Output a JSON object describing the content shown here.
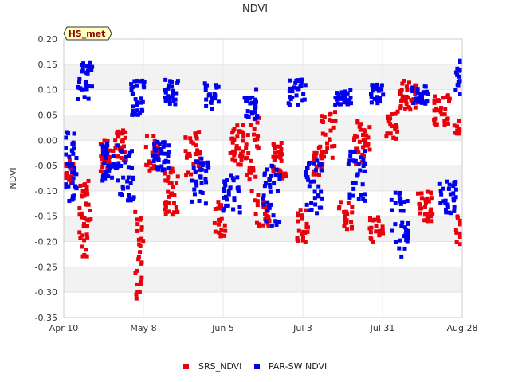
{
  "chart_data": {
    "type": "scatter",
    "title": "NDVI",
    "xlabel": "",
    "ylabel": "NDVI",
    "badge": "HS_met",
    "xlim_days": [
      0,
      140
    ],
    "ylim": [
      -0.35,
      0.2
    ],
    "yticks": [
      {
        "v": 0.2,
        "label": "0.20"
      },
      {
        "v": 0.15,
        "label": "0.15"
      },
      {
        "v": 0.1,
        "label": "0.10"
      },
      {
        "v": 0.05,
        "label": "0.05"
      },
      {
        "v": 0.0,
        "label": "0.00"
      },
      {
        "v": -0.05,
        "label": "-0.05"
      },
      {
        "v": -0.1,
        "label": "-0.10"
      },
      {
        "v": -0.15,
        "label": "-0.15"
      },
      {
        "v": -0.2,
        "label": "-0.20"
      },
      {
        "v": -0.25,
        "label": "-0.25"
      },
      {
        "v": -0.3,
        "label": "-0.30"
      },
      {
        "v": -0.35,
        "label": "-0.35"
      }
    ],
    "xticks": [
      {
        "day": 0,
        "label": "Apr 10"
      },
      {
        "day": 28,
        "label": "May 8"
      },
      {
        "day": 56,
        "label": "Jun 5"
      },
      {
        "day": 84,
        "label": "Jul 3"
      },
      {
        "day": 112,
        "label": "Jul 31"
      },
      {
        "day": 140,
        "label": "Aug 28"
      }
    ],
    "series": [
      {
        "name": "SRS_NDVI",
        "color": "#e8000b",
        "clusters": [
          {
            "day": 1.5,
            "spread": 2.2,
            "min": -0.09,
            "max": -0.04,
            "n": 24
          },
          {
            "day": 7.5,
            "spread": 2.0,
            "min": -0.23,
            "max": -0.08,
            "n": 42
          },
          {
            "day": 15,
            "spread": 2.5,
            "min": -0.07,
            "max": 0.0,
            "n": 28
          },
          {
            "day": 20,
            "spread": 2.0,
            "min": -0.04,
            "max": 0.02,
            "n": 30
          },
          {
            "day": 26.5,
            "spread": 1.5,
            "min": -0.32,
            "max": -0.14,
            "n": 28
          },
          {
            "day": 31,
            "spread": 2.2,
            "min": -0.06,
            "max": 0.01,
            "n": 24
          },
          {
            "day": 38,
            "spread": 2.5,
            "min": -0.15,
            "max": -0.05,
            "n": 34
          },
          {
            "day": 45,
            "spread": 3.0,
            "min": -0.07,
            "max": 0.02,
            "n": 32
          },
          {
            "day": 55,
            "spread": 2.0,
            "min": -0.19,
            "max": -0.12,
            "n": 20
          },
          {
            "day": 61,
            "spread": 2.5,
            "min": -0.05,
            "max": 0.03,
            "n": 34
          },
          {
            "day": 66,
            "spread": 2.5,
            "min": -0.13,
            "max": 0.05,
            "n": 32
          },
          {
            "day": 70,
            "spread": 2.5,
            "min": -0.17,
            "max": -0.12,
            "n": 24
          },
          {
            "day": 76,
            "spread": 2.5,
            "min": -0.08,
            "max": 0.0,
            "n": 34
          },
          {
            "day": 84,
            "spread": 2.0,
            "min": -0.2,
            "max": -0.13,
            "n": 22
          },
          {
            "day": 89,
            "spread": 2.0,
            "min": -0.07,
            "max": -0.01,
            "n": 20
          },
          {
            "day": 93,
            "spread": 2.5,
            "min": -0.04,
            "max": 0.06,
            "n": 26
          },
          {
            "day": 99,
            "spread": 2.5,
            "min": -0.18,
            "max": -0.12,
            "n": 20
          },
          {
            "day": 105,
            "spread": 3.0,
            "min": -0.05,
            "max": 0.04,
            "n": 34
          },
          {
            "day": 110,
            "spread": 2.5,
            "min": -0.2,
            "max": -0.15,
            "n": 22
          },
          {
            "day": 115,
            "spread": 2.5,
            "min": 0.0,
            "max": 0.06,
            "n": 20
          },
          {
            "day": 121,
            "spread": 3.0,
            "min": 0.06,
            "max": 0.12,
            "n": 36
          },
          {
            "day": 127,
            "spread": 3.0,
            "min": -0.16,
            "max": -0.1,
            "n": 30
          },
          {
            "day": 133,
            "spread": 3.0,
            "min": 0.03,
            "max": 0.09,
            "n": 32
          },
          {
            "day": 139,
            "spread": 1.5,
            "min": -0.21,
            "max": -0.15,
            "n": 12
          },
          {
            "day": 138.5,
            "spread": 1.5,
            "min": 0.01,
            "max": 0.04,
            "n": 10
          }
        ]
      },
      {
        "name": "PAR-SW NDVI",
        "color": "#0000ee",
        "clusters": [
          {
            "day": 2.0,
            "spread": 2.5,
            "min": -0.12,
            "max": 0.03,
            "n": 36
          },
          {
            "day": 7.5,
            "spread": 2.5,
            "min": 0.08,
            "max": 0.16,
            "n": 32
          },
          {
            "day": 16,
            "spread": 3.0,
            "min": -0.08,
            "max": 0.0,
            "n": 38
          },
          {
            "day": 22,
            "spread": 3.0,
            "min": -0.12,
            "max": -0.02,
            "n": 30
          },
          {
            "day": 26,
            "spread": 2.5,
            "min": 0.05,
            "max": 0.12,
            "n": 30
          },
          {
            "day": 34,
            "spread": 3.0,
            "min": -0.06,
            "max": 0.0,
            "n": 36
          },
          {
            "day": 38,
            "spread": 2.5,
            "min": 0.07,
            "max": 0.12,
            "n": 26
          },
          {
            "day": 48,
            "spread": 3.0,
            "min": -0.13,
            "max": -0.03,
            "n": 34
          },
          {
            "day": 52,
            "spread": 2.5,
            "min": 0.06,
            "max": 0.12,
            "n": 22
          },
          {
            "day": 59,
            "spread": 3.0,
            "min": -0.15,
            "max": -0.07,
            "n": 32
          },
          {
            "day": 66,
            "spread": 2.5,
            "min": 0.04,
            "max": 0.11,
            "n": 28
          },
          {
            "day": 73,
            "spread": 3.0,
            "min": -0.17,
            "max": -0.05,
            "n": 34
          },
          {
            "day": 82,
            "spread": 3.0,
            "min": 0.07,
            "max": 0.12,
            "n": 30
          },
          {
            "day": 88,
            "spread": 3.0,
            "min": -0.15,
            "max": -0.04,
            "n": 34
          },
          {
            "day": 98,
            "spread": 3.0,
            "min": 0.07,
            "max": 0.1,
            "n": 30
          },
          {
            "day": 103,
            "spread": 3.0,
            "min": -0.12,
            "max": -0.02,
            "n": 32
          },
          {
            "day": 110,
            "spread": 2.5,
            "min": 0.07,
            "max": 0.11,
            "n": 24
          },
          {
            "day": 118,
            "spread": 3.0,
            "min": -0.23,
            "max": -0.1,
            "n": 36
          },
          {
            "day": 125,
            "spread": 3.0,
            "min": 0.07,
            "max": 0.11,
            "n": 30
          },
          {
            "day": 135,
            "spread": 3.0,
            "min": -0.15,
            "max": -0.08,
            "n": 30
          },
          {
            "day": 139,
            "spread": 1.5,
            "min": 0.09,
            "max": 0.16,
            "n": 14
          }
        ]
      }
    ]
  }
}
